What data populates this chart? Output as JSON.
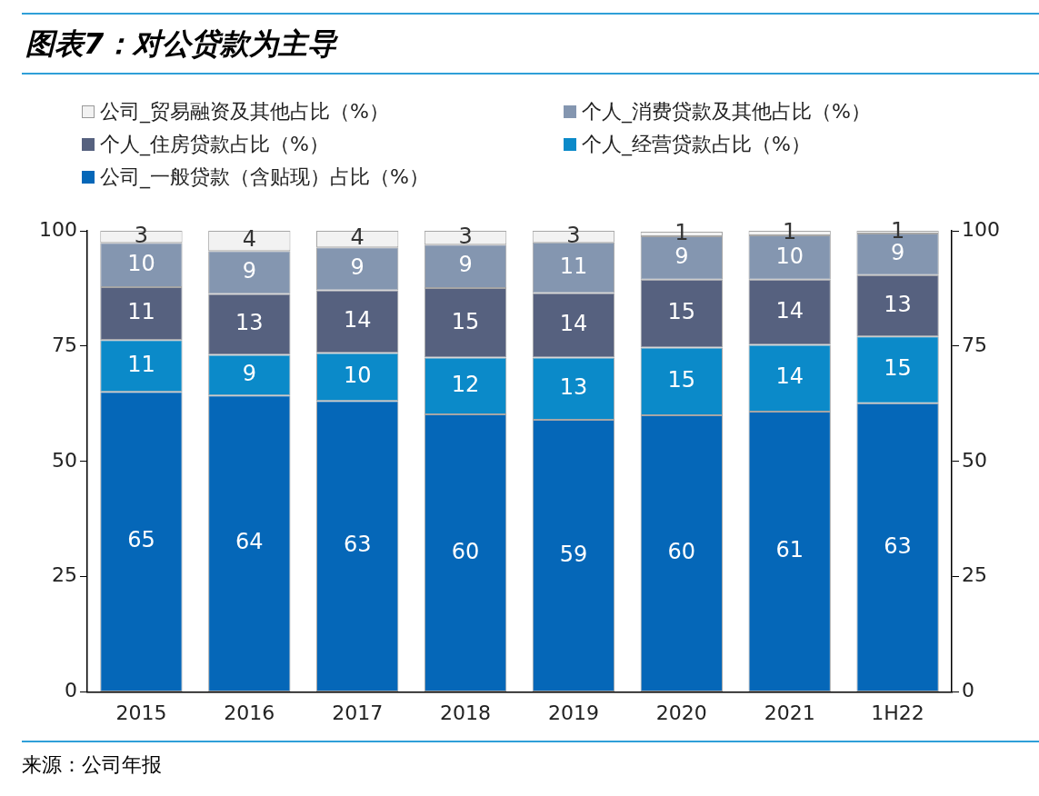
{
  "chart_data": {
    "type": "bar",
    "title": "图表7：对公贷款为主导",
    "stacked": true,
    "legend": "top",
    "data_labels": true,
    "categories": [
      "2015",
      "2016",
      "2017",
      "2018",
      "2019",
      "2020",
      "2021",
      "1H22"
    ],
    "ylim": [
      0,
      100
    ],
    "yticks": [
      0,
      25,
      50,
      75,
      100
    ],
    "y2lim": [
      0,
      100
    ],
    "y2ticks": [
      0,
      25,
      50,
      75,
      100
    ],
    "series": [
      {
        "name": "公司_一般贷款（含贴现）占比（%）",
        "color": "#0567b8",
        "values": [
          65.1,
          64.3,
          63.1,
          60.2,
          59.0,
          60.0,
          60.8,
          62.6
        ],
        "value_labels": [
          "65",
          "64",
          "63",
          "60",
          "59",
          "60",
          "61",
          "63"
        ]
      },
      {
        "name": "个人_经营贷款占比（%）",
        "color": "#0b8ac9",
        "values": [
          11.2,
          8.8,
          10.4,
          12.3,
          13.5,
          14.7,
          14.5,
          14.5
        ],
        "value_labels": [
          "11",
          "9",
          "10",
          "12",
          "13",
          "15",
          "14",
          "15"
        ]
      },
      {
        "name": "个人_住房贷款占比（%）",
        "color": "#56617f",
        "values": [
          11.5,
          13.2,
          13.6,
          15.1,
          14.0,
          14.7,
          14.1,
          13.3
        ],
        "value_labels": [
          "11",
          "13",
          "14",
          "15",
          "14",
          "15",
          "14",
          "13"
        ]
      },
      {
        "name": "个人_消费贷款及其他占比（%）",
        "color": "#8496b0",
        "values": [
          9.6,
          9.3,
          9.3,
          9.4,
          11.0,
          9.4,
          9.6,
          9.0
        ],
        "value_labels": [
          "10",
          "9",
          "9",
          "9",
          "11",
          "9",
          "10",
          "9"
        ]
      },
      {
        "name": "公司_贸易融资及其他占比（%）",
        "color": "#f2f2f2",
        "values": [
          2.6,
          4.4,
          3.6,
          3.0,
          2.5,
          1.0,
          1.0,
          0.6
        ],
        "value_labels": [
          "3",
          "4",
          "4",
          "3",
          "3",
          "1",
          "1",
          "1"
        ]
      }
    ],
    "annotations": [
      "来源：公司年报"
    ]
  }
}
